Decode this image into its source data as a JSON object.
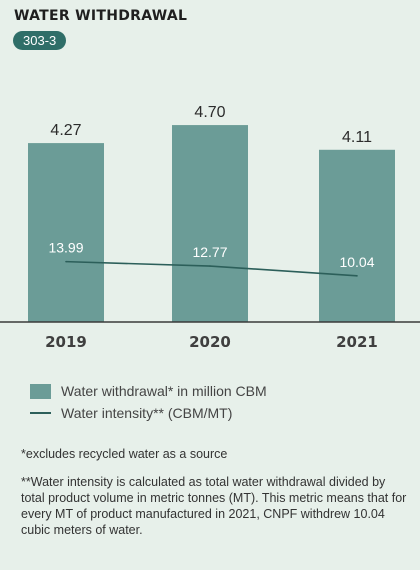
{
  "title": "WATER WITHDRAWAL",
  "code": "303-3",
  "chart_data": {
    "type": "bar",
    "categories": [
      "2019",
      "2020",
      "2021"
    ],
    "series": [
      {
        "name": "Water withdrawal* in million CBM",
        "type": "bar",
        "values": [
          4.27,
          4.7,
          4.11
        ],
        "labels": [
          "4.27",
          "4.70",
          "4.11"
        ]
      },
      {
        "name": "Water intensity** (CBM/MT)",
        "type": "line",
        "values": [
          13.99,
          12.77,
          10.04
        ],
        "labels": [
          "13.99",
          "12.77",
          "10.04"
        ]
      }
    ],
    "bar_color": "#6b9c97",
    "line_color": "#2c5f5a",
    "legend_position": "bottom-left",
    "grid": false
  },
  "legend": {
    "bar_label": "Water withdrawal* in million CBM",
    "line_label": "Water intensity** (CBM/MT)"
  },
  "notes": {
    "note1": "*excludes recycled water as a source",
    "note2": "**Water intensity is calculated as total water withdrawal divided by total product volume in metric tonnes (MT). This metric means that for every MT of product manufactured in 2021, CNPF withdrew 10.04 cubic meters of water."
  }
}
